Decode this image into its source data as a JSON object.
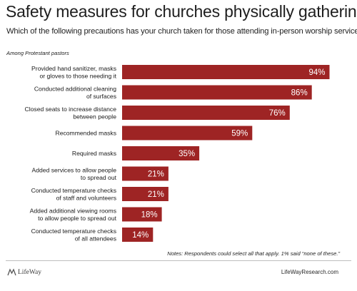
{
  "chart_data": {
    "type": "bar",
    "orientation": "horizontal",
    "title": "Safety measures for churches physically gathering",
    "subtitle": "Which of the following precautions has your church taken for those attending in-person worship services?",
    "population_note": "Among Protestant pastors",
    "categories": [
      [
        "Provided hand sanitizer, masks",
        "or gloves to those needing it"
      ],
      [
        "Conducted additional cleaning",
        "of surfaces"
      ],
      [
        "Closed seats to increase distance",
        "between people"
      ],
      [
        "Recommended masks"
      ],
      [
        "Required masks"
      ],
      [
        "Added services to allow people",
        "to spread out"
      ],
      [
        "Conducted temperature checks",
        "of staff and volunteers"
      ],
      [
        "Added additional viewing rooms",
        "to allow people to spread out"
      ],
      [
        "Conducted temperature checks",
        "of all attendees"
      ]
    ],
    "values": [
      94,
      86,
      76,
      59,
      35,
      21,
      21,
      18,
      14
    ],
    "value_labels": [
      "94%",
      "86%",
      "76%",
      "59%",
      "35%",
      "21%",
      "21%",
      "18%",
      "14%"
    ],
    "xlim": [
      0,
      100
    ],
    "bar_color": "#9e2424",
    "grid": false,
    "legend": "none"
  },
  "notes": "Notes: Respondents could select all that apply. 1% said “none of these.”",
  "footer": {
    "logo_text": "LifeWay",
    "website": "LifeWayResearch.com"
  }
}
